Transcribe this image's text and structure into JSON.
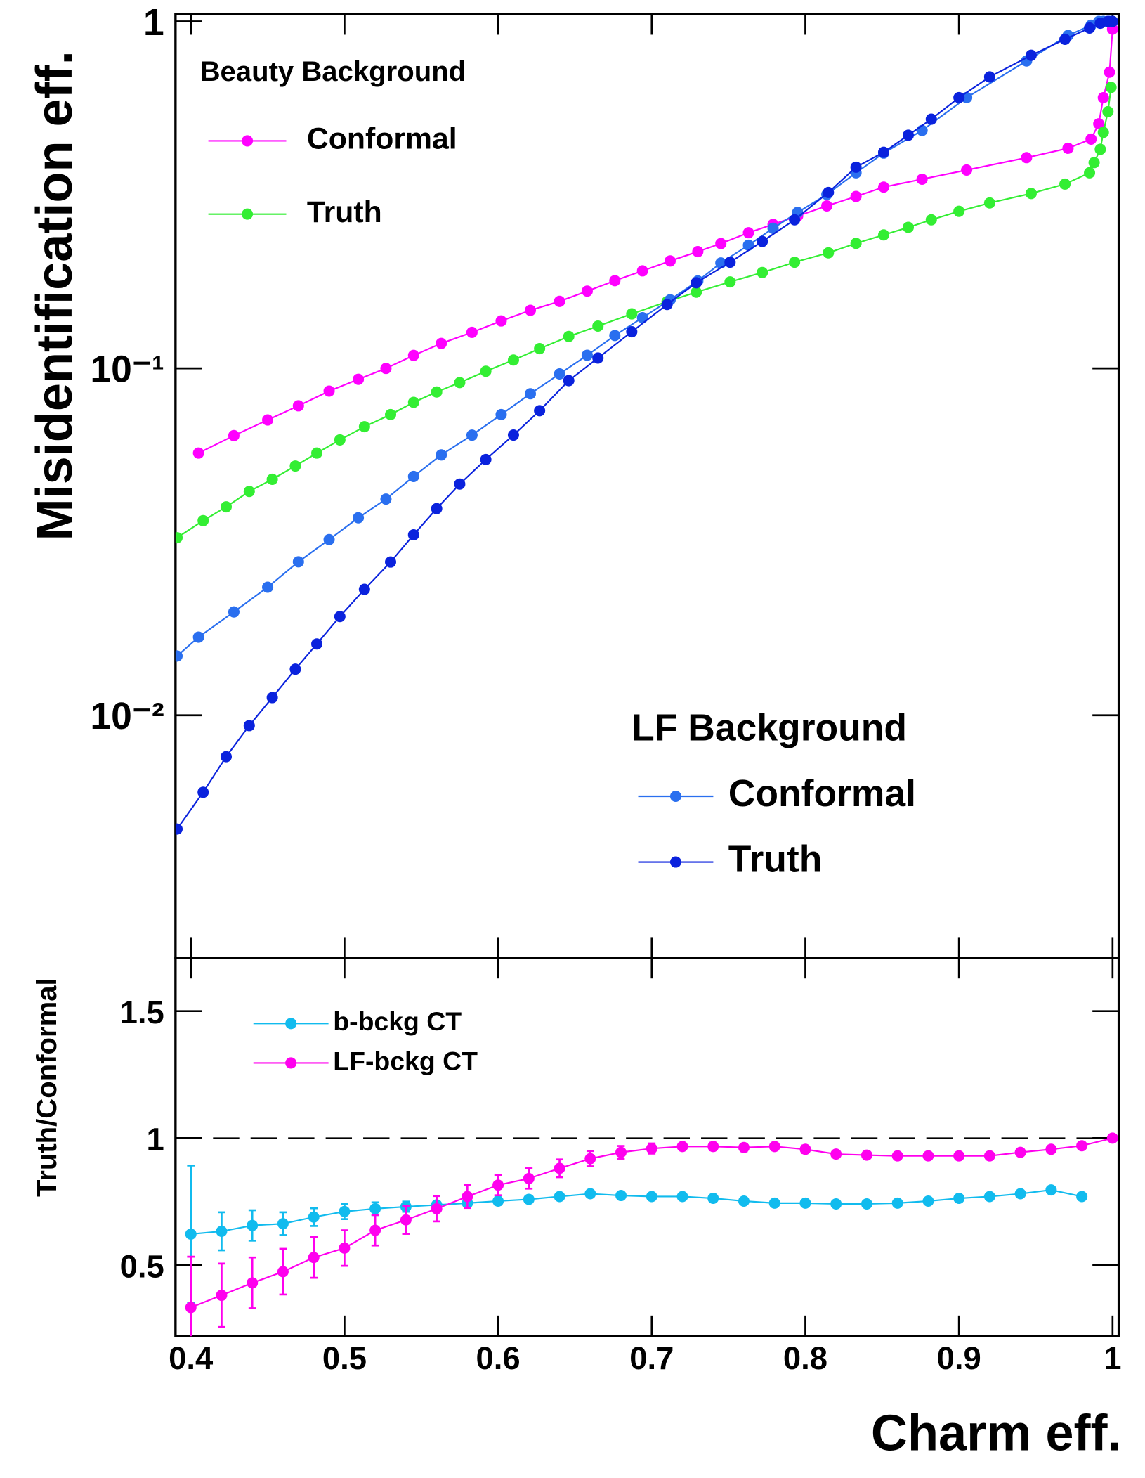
{
  "chart_data": [
    {
      "type": "line",
      "log_y": true,
      "y_label": "Misidentification eff.",
      "xlim": [
        0.39,
        1.004
      ],
      "ylim": [
        0.002,
        1.05
      ],
      "yticks": [
        1,
        {
          "value": 0.1,
          "label": "10⁻¹"
        },
        {
          "value": 0.01,
          "label": "10⁻²"
        }
      ],
      "series_groups": [
        {
          "title": "Beauty Background",
          "series": [
            {
              "name": "Conformal",
              "color": "#ff00ff",
              "x": [
                0.405,
                0.428,
                0.45,
                0.47,
                0.49,
                0.509,
                0.527,
                0.545,
                0.563,
                0.583,
                0.602,
                0.621,
                0.64,
                0.658,
                0.676,
                0.694,
                0.712,
                0.73,
                0.745,
                0.763,
                0.779,
                0.795,
                0.814,
                0.833,
                0.851,
                0.876,
                0.905,
                0.944,
                0.971,
                0.986,
                0.991,
                0.994,
                0.998,
                1.0
              ],
              "values": [
                0.057,
                0.064,
                0.071,
                0.078,
                0.086,
                0.093,
                0.1,
                0.109,
                0.118,
                0.127,
                0.137,
                0.147,
                0.156,
                0.167,
                0.179,
                0.191,
                0.204,
                0.217,
                0.229,
                0.246,
                0.26,
                0.275,
                0.294,
                0.313,
                0.333,
                0.351,
                0.373,
                0.405,
                0.431,
                0.458,
                0.507,
                0.603,
                0.714,
                0.95
              ]
            },
            {
              "name": "Truth",
              "color": "#33ee33",
              "x": [
                0.391,
                0.408,
                0.423,
                0.438,
                0.453,
                0.468,
                0.482,
                0.497,
                0.513,
                0.53,
                0.545,
                0.56,
                0.575,
                0.592,
                0.61,
                0.627,
                0.646,
                0.665,
                0.687,
                0.71,
                0.729,
                0.751,
                0.772,
                0.793,
                0.815,
                0.833,
                0.851,
                0.867,
                0.882,
                0.9,
                0.92,
                0.947,
                0.969,
                0.985,
                0.988,
                0.992,
                0.994,
                0.997,
                0.999
              ],
              "values": [
                0.0325,
                0.0364,
                0.0399,
                0.0442,
                0.0479,
                0.0523,
                0.057,
                0.0622,
                0.0679,
                0.0736,
                0.0798,
                0.0855,
                0.091,
                0.0981,
                0.1057,
                0.114,
                0.1236,
                0.1324,
                0.1436,
                0.1557,
                0.1658,
                0.1775,
                0.1889,
                0.2023,
                0.2153,
                0.2293,
                0.2425,
                0.255,
                0.2681,
                0.2836,
                0.2998,
                0.3192,
                0.3398,
                0.3663,
                0.392,
                0.428,
                0.479,
                0.5495,
                0.6457
              ]
            }
          ]
        },
        {
          "title": "LF Background",
          "series": [
            {
              "name": "Conformal",
              "color": "#2a6fef",
              "x": [
                0.391,
                0.405,
                0.428,
                0.45,
                0.47,
                0.49,
                0.509,
                0.527,
                0.545,
                0.563,
                0.583,
                0.602,
                0.621,
                0.64,
                0.658,
                0.676,
                0.694,
                0.712,
                0.73,
                0.745,
                0.763,
                0.779,
                0.795,
                0.814,
                0.833,
                0.851,
                0.876,
                0.905,
                0.944,
                0.971,
                0.986,
                0.991,
                0.994,
                0.998,
                1.0
              ],
              "values": [
                0.01482,
                0.0168,
                0.01986,
                0.0234,
                0.0277,
                0.0321,
                0.0371,
                0.042,
                0.0488,
                0.0563,
                0.0642,
                0.0736,
                0.0845,
                0.0964,
                0.1091,
                0.1244,
                0.14,
                0.1577,
                0.1786,
                0.2013,
                0.2265,
                0.2534,
                0.2816,
                0.3172,
                0.3663,
                0.4175,
                0.4851,
                0.6032,
                0.7694,
                0.911,
                0.975,
                1.0,
                1.0,
                1.0,
                1.0
              ]
            },
            {
              "name": "Truth",
              "color": "#0a22dd",
              "x": [
                0.391,
                0.408,
                0.423,
                0.438,
                0.453,
                0.468,
                0.482,
                0.497,
                0.513,
                0.53,
                0.545,
                0.56,
                0.575,
                0.592,
                0.61,
                0.627,
                0.646,
                0.665,
                0.687,
                0.71,
                0.729,
                0.751,
                0.772,
                0.793,
                0.815,
                0.833,
                0.851,
                0.867,
                0.882,
                0.9,
                0.92,
                0.947,
                0.969,
                0.985,
                0.992,
                0.997,
                1.0
              ],
              "values": [
                0.0047,
                0.006,
                0.0076,
                0.00934,
                0.01125,
                0.01358,
                0.01606,
                0.01926,
                0.02307,
                0.02766,
                0.03313,
                0.03943,
                0.04641,
                0.05461,
                0.06423,
                0.07551,
                0.0922,
                0.1071,
                0.1275,
                0.1528,
                0.1765,
                0.2023,
                0.2322,
                0.2681,
                0.3214,
                0.3802,
                0.4198,
                0.4699,
                0.5228,
                0.6032,
                0.692,
                0.7988,
                0.8882,
                0.957,
                0.988,
                1.0,
                1.0
              ]
            }
          ]
        }
      ]
    },
    {
      "type": "line",
      "y_label": "Truth/Conformal",
      "x_label": "Charm eff.",
      "xlim": [
        0.39,
        1.004
      ],
      "ylim": [
        0.22,
        1.71
      ],
      "xticks": [
        0.4,
        0.5,
        0.6,
        0.7,
        0.8,
        0.9,
        1
      ],
      "yticks": [
        0.5,
        1,
        1.5
      ],
      "reference_line": 1,
      "series": [
        {
          "name": "b-bckg CT",
          "color": "#11bbee",
          "x": [
            0.4,
            0.42,
            0.44,
            0.46,
            0.48,
            0.5,
            0.52,
            0.54,
            0.56,
            0.58,
            0.6,
            0.62,
            0.64,
            0.66,
            0.68,
            0.7,
            0.72,
            0.74,
            0.76,
            0.78,
            0.8,
            0.82,
            0.84,
            0.86,
            0.88,
            0.9,
            0.92,
            0.94,
            0.96,
            0.98
          ],
          "values": [
            0.622,
            0.633,
            0.656,
            0.663,
            0.689,
            0.711,
            0.722,
            0.73,
            0.737,
            0.744,
            0.752,
            0.759,
            0.77,
            0.781,
            0.774,
            0.77,
            0.77,
            0.763,
            0.752,
            0.744,
            0.744,
            0.741,
            0.741,
            0.744,
            0.752,
            0.763,
            0.77,
            0.781,
            0.796,
            0.77
          ],
          "errors": [
            0.27,
            0.075,
            0.06,
            0.045,
            0.035,
            0.03,
            0.025,
            0.02,
            0.015,
            0.015,
            0.015,
            0.012,
            0.01,
            0.01,
            0.01,
            0.01,
            0.01,
            0.01,
            0.01,
            0.01,
            0.01,
            0.01,
            0.01,
            0.01,
            0.01,
            0.01,
            0.01,
            0.01,
            0.01,
            0.01
          ]
        },
        {
          "name": "LF-bckg CT",
          "color": "#ff00ee",
          "x": [
            0.4,
            0.42,
            0.44,
            0.46,
            0.48,
            0.5,
            0.52,
            0.54,
            0.56,
            0.58,
            0.6,
            0.62,
            0.64,
            0.66,
            0.68,
            0.7,
            0.72,
            0.74,
            0.76,
            0.78,
            0.8,
            0.82,
            0.84,
            0.86,
            0.88,
            0.9,
            0.92,
            0.94,
            0.96,
            0.98,
            1.0
          ],
          "values": [
            0.333,
            0.381,
            0.43,
            0.474,
            0.53,
            0.567,
            0.637,
            0.678,
            0.722,
            0.77,
            0.815,
            0.841,
            0.881,
            0.919,
            0.944,
            0.959,
            0.967,
            0.967,
            0.963,
            0.967,
            0.956,
            0.937,
            0.933,
            0.93,
            0.93,
            0.93,
            0.93,
            0.944,
            0.956,
            0.97,
            1.0
          ],
          "errors": [
            0.2,
            0.125,
            0.1,
            0.09,
            0.08,
            0.07,
            0.06,
            0.055,
            0.05,
            0.045,
            0.04,
            0.04,
            0.035,
            0.03,
            0.025,
            0.02,
            0.015,
            0.015,
            0.015,
            0.015,
            0.015,
            0.012,
            0.012,
            0.012,
            0.01,
            0.01,
            0.01,
            0.01,
            0.01,
            0.01,
            0
          ]
        }
      ]
    }
  ]
}
